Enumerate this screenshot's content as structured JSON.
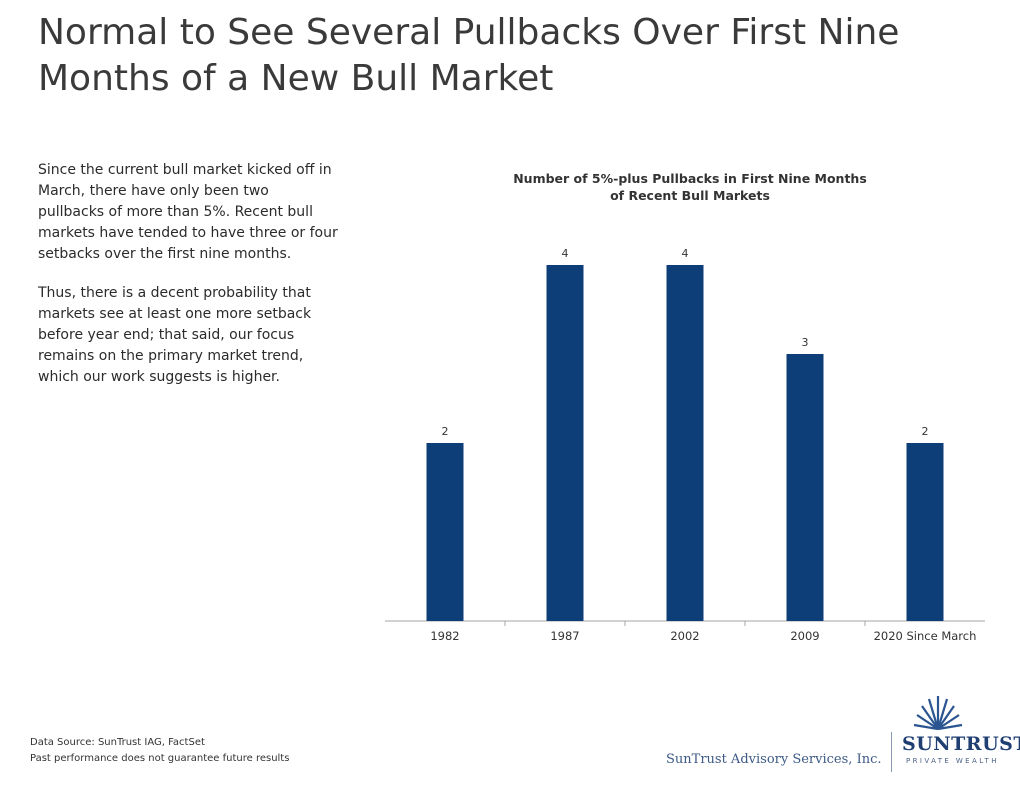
{
  "title": "Normal to See Several Pullbacks Over First Nine Months of a New Bull Market",
  "commentary": [
    "Since the current bull market kicked off in March, there have only been two pullbacks of more than 5%. Recent bull markets have tended to have three or four setbacks over the first nine months.",
    "Thus, there is a decent probability that markets see at least one more setback before year end; that said, our focus remains on the primary market trend, which our work suggests is higher."
  ],
  "chart_data": {
    "type": "bar",
    "title_lines": [
      "Number of 5%-plus Pullbacks in First Nine Months",
      "of Recent Bull Markets"
    ],
    "categories": [
      "1982",
      "1987",
      "2002",
      "2009",
      "2020 Since March"
    ],
    "values": [
      2,
      4,
      4,
      3,
      2
    ],
    "data_labels": [
      "2",
      "4",
      "4",
      "3",
      "2"
    ],
    "ylim": [
      0,
      4
    ],
    "grid": false,
    "legend": "none",
    "bar_color": "#0d3e78"
  },
  "footnotes": {
    "source": "Data Source: SunTrust IAG, FactSet",
    "disclaimer": "Past performance does not guarantee future results"
  },
  "branding": {
    "advisory": "SunTrust Advisory Services, Inc.",
    "logo_name": "SunTrust",
    "logo_sub": "PRIVATE WEALTH"
  }
}
